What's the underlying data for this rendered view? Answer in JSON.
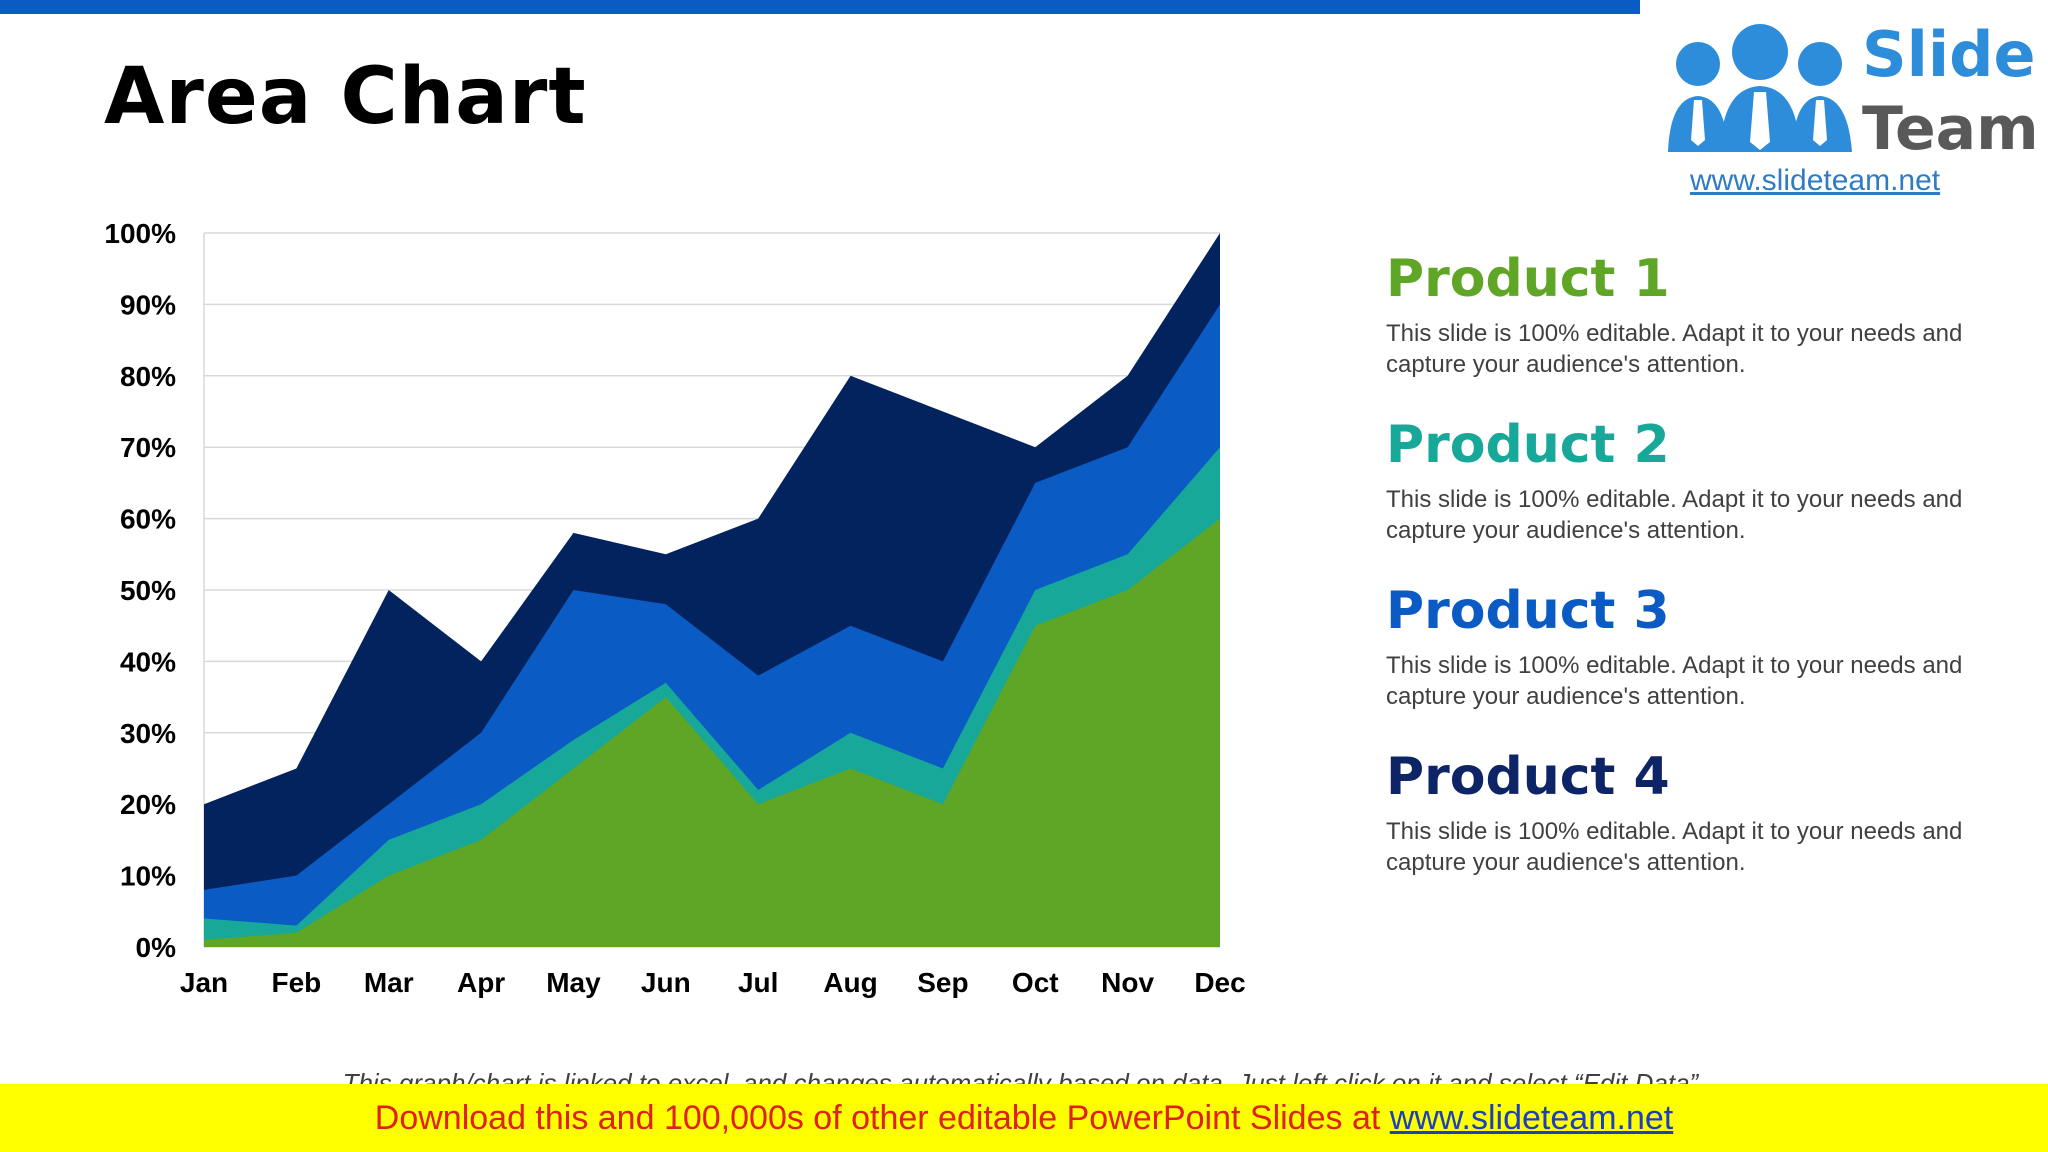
{
  "slide": {
    "title": "Area Chart",
    "footnote": "This graph/chart is linked to excel, and changes automatically based on data. Just left click on it and select “Edit Data”."
  },
  "logo": {
    "word1": "Slide",
    "word2": "Team",
    "url": "www.slideteam.net"
  },
  "banner": {
    "text": "Download this and 100,000s of other editable PowerPoint Slides at ",
    "link": "www.slideteam.net"
  },
  "legend": [
    {
      "title": "Product 1",
      "color": "#5fa526",
      "desc": "This slide is 100% editable. Adapt it to your needs and capture your audience's attention."
    },
    {
      "title": "Product 2",
      "color": "#17a89a",
      "desc": "This slide is 100% editable. Adapt it to your needs and capture your audience's attention."
    },
    {
      "title": "Product 3",
      "color": "#0a5bc4",
      "desc": "This slide is 100% editable. Adapt it to your needs and capture your audience's attention."
    },
    {
      "title": "Product 4",
      "color": "#0d2466",
      "desc": "This slide is 100% editable. Adapt it to your needs and capture your audience's attention."
    }
  ],
  "chart_data": {
    "type": "area",
    "stacked": true,
    "categories": [
      "Jan",
      "Feb",
      "Mar",
      "Apr",
      "May",
      "Jun",
      "Jul",
      "Aug",
      "Sep",
      "Oct",
      "Nov",
      "Dec"
    ],
    "y_ticks": [
      "0%",
      "10%",
      "20%",
      "30%",
      "40%",
      "50%",
      "60%",
      "70%",
      "80%",
      "90%",
      "100%"
    ],
    "ylim": [
      0,
      100
    ],
    "grid": true,
    "series": [
      {
        "name": "Product 1",
        "color": "#5fa526",
        "values": [
          1,
          2,
          10,
          15,
          25,
          35,
          20,
          25,
          20,
          45,
          50,
          60
        ]
      },
      {
        "name": "Product 2",
        "color": "#17a89a",
        "values": [
          3,
          1,
          5,
          5,
          4,
          2,
          2,
          5,
          5,
          5,
          5,
          10
        ]
      },
      {
        "name": "Product 3",
        "color": "#0a5bc4",
        "values": [
          4,
          7,
          5,
          10,
          21,
          11,
          16,
          15,
          15,
          15,
          15,
          20
        ]
      },
      {
        "name": "Product 4",
        "color": "#03235e",
        "values": [
          12,
          15,
          30,
          10,
          8,
          7,
          22,
          35,
          35,
          5,
          10,
          10
        ]
      }
    ]
  }
}
